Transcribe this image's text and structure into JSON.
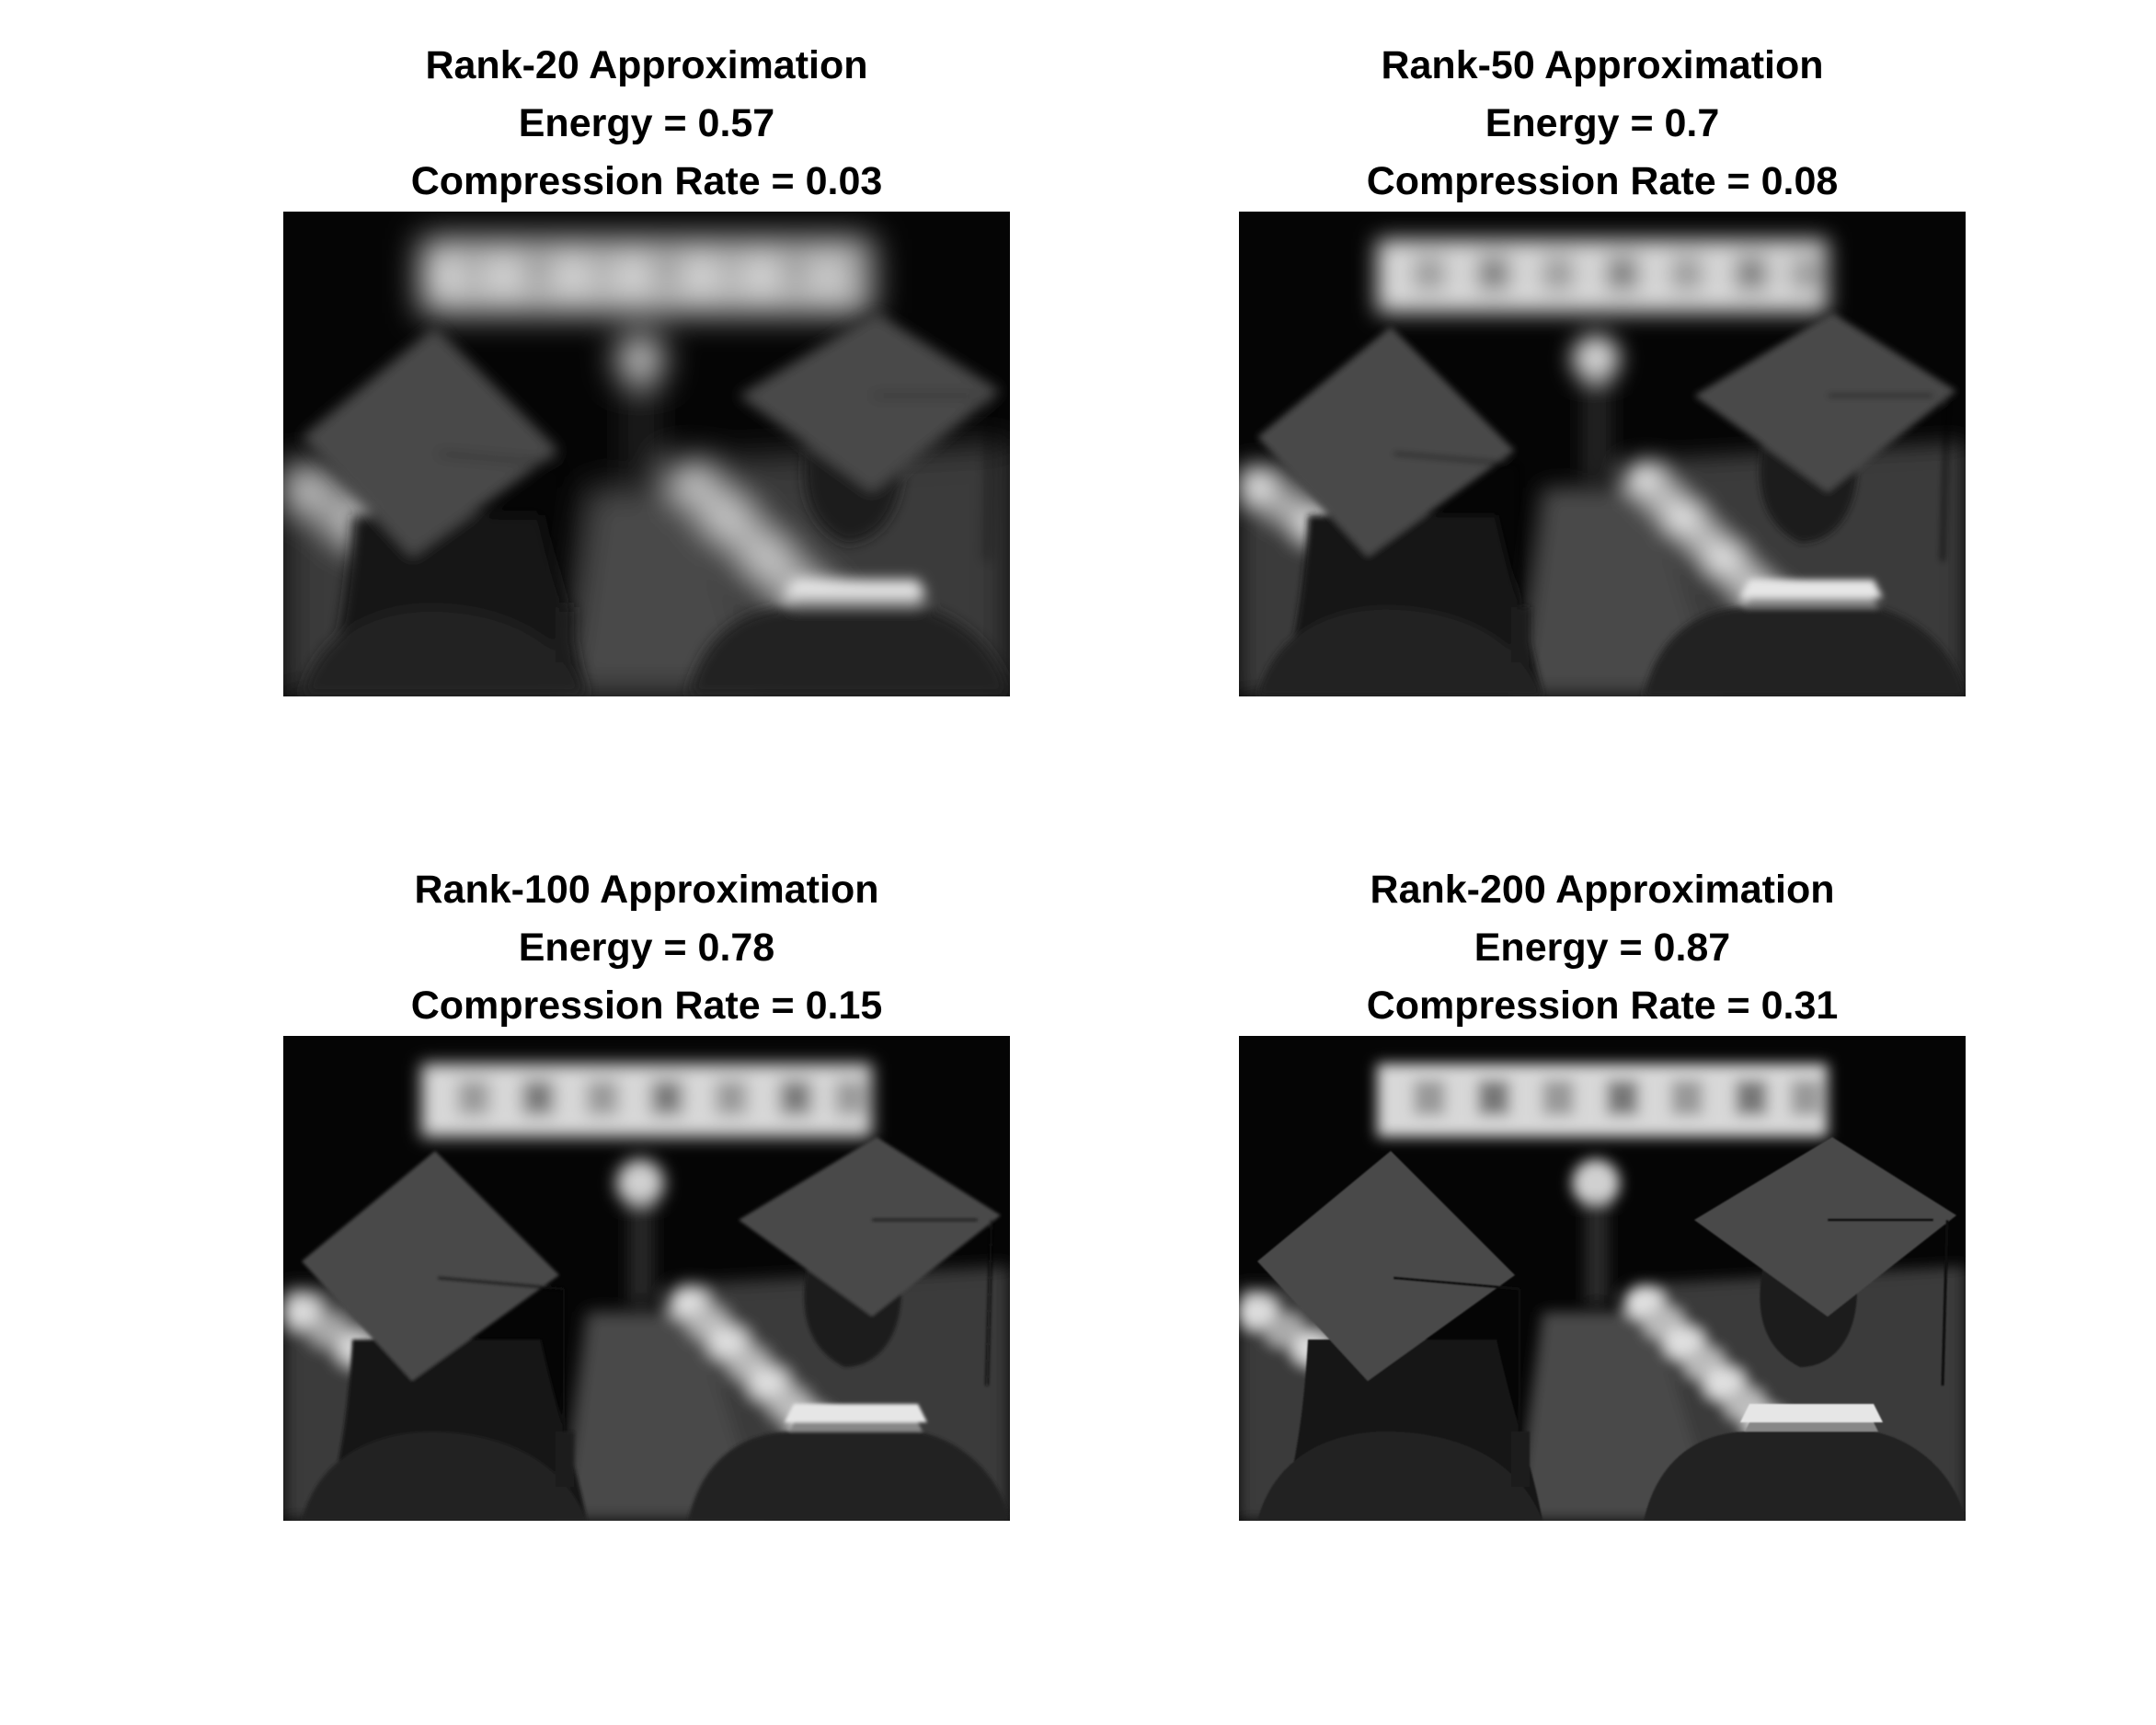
{
  "panels": [
    {
      "title": "Rank-20 Approximation",
      "energy": "Energy = 0.57",
      "compression": "Compression Rate = 0.03",
      "rank": 20,
      "blur": 12
    },
    {
      "title": "Rank-50 Approximation",
      "energy": "Energy = 0.7",
      "compression": "Compression Rate = 0.08",
      "rank": 50,
      "blur": 6
    },
    {
      "title": "Rank-100 Approximation",
      "energy": "Energy = 0.78",
      "compression": "Compression Rate = 0.15",
      "rank": 100,
      "blur": 3
    },
    {
      "title": "Rank-200 Approximation",
      "energy": "Energy = 0.87",
      "compression": "Compression Rate = 0.31",
      "rank": 200,
      "blur": 1.5
    }
  ]
}
